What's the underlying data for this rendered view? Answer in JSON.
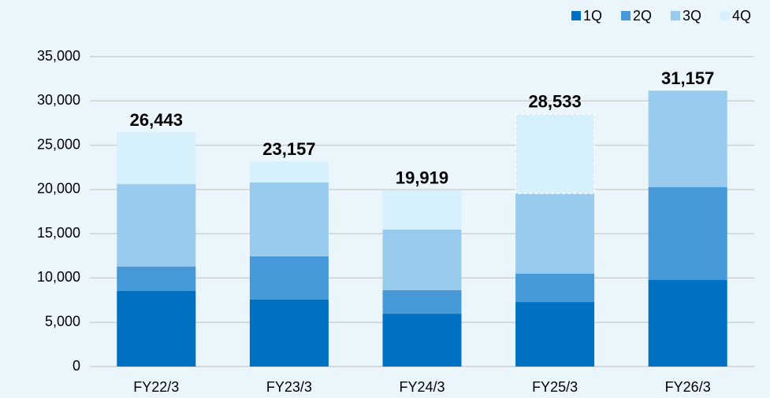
{
  "chart_data": {
    "type": "stacked_bar",
    "categories": [
      "FY22/3",
      "FY23/3",
      "FY24/3",
      "FY25/3",
      "FY26/3"
    ],
    "series": [
      {
        "name": "1Q",
        "color": "#0070c0",
        "values": [
          8530,
          7550,
          5950,
          7280,
          9770
        ]
      },
      {
        "name": "2Q",
        "color": "#4499d6",
        "values": [
          2770,
          4890,
          2670,
          3200,
          10480
        ]
      },
      {
        "name": "3Q",
        "color": "#99cbee",
        "values": [
          9300,
          8350,
          6840,
          9060,
          10907
        ]
      },
      {
        "name": "4Q",
        "color": "#d7f1fc",
        "values": [
          5843,
          2367,
          4459,
          8993,
          null
        ],
        "dashed": [
          false,
          false,
          false,
          true,
          false
        ]
      }
    ],
    "totals": {
      "values": [
        26443,
        23157,
        19919,
        28533,
        31157
      ],
      "value_labels": [
        "26,443",
        "23,157",
        "19,919",
        "28,533",
        "31,157"
      ]
    },
    "ylim": [
      0,
      35000
    ],
    "yticks": [
      0,
      {
        "value": 5000,
        "label": "5,000"
      },
      {
        "value": 10000,
        "label": "10,000"
      },
      {
        "value": 15000,
        "label": "15,000"
      },
      {
        "value": 20000,
        "label": "20,000"
      },
      {
        "value": 25000,
        "label": "25,000"
      },
      {
        "value": 30000,
        "label": "30,000"
      },
      {
        "value": 35000,
        "label": "35,000"
      }
    ],
    "grid": true,
    "legend": "top-right"
  }
}
